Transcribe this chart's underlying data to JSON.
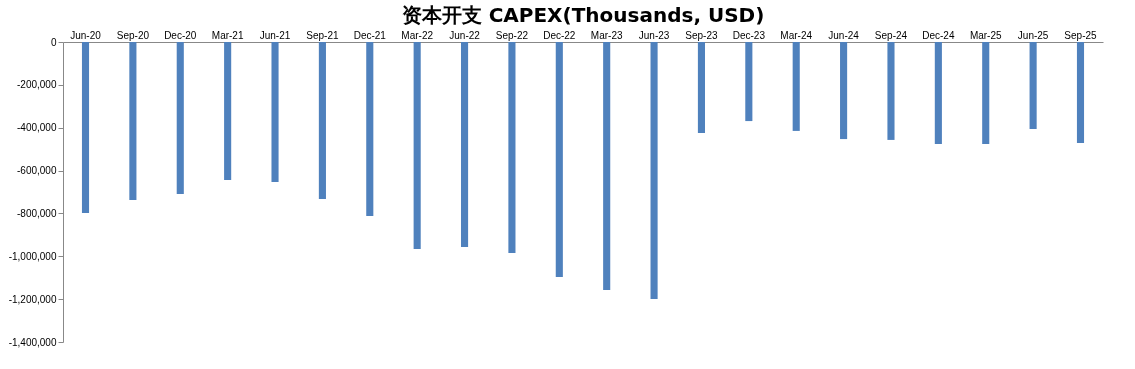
{
  "chart_data": {
    "type": "bar",
    "title": "资本开支 CAPEX(Thousands, USD)",
    "categories": [
      "Jun-20",
      "Sep-20",
      "Dec-20",
      "Mar-21",
      "Jun-21",
      "Sep-21",
      "Dec-21",
      "Mar-22",
      "Jun-22",
      "Sep-22",
      "Dec-22",
      "Mar-23",
      "Jun-23",
      "Sep-23",
      "Dec-23",
      "Mar-24",
      "Jun-24",
      "Sep-24",
      "Dec-24",
      "Mar-25",
      "Jun-25",
      "Sep-25"
    ],
    "values": [
      -798000,
      -737000,
      -709000,
      -644000,
      -653000,
      -733000,
      -812000,
      -966000,
      -957000,
      -985000,
      -1097000,
      -1157000,
      -1199000,
      -425000,
      -369000,
      -415000,
      -453000,
      -457000,
      -476000,
      -476000,
      -406000,
      -471000
    ],
    "color": "#4f81bd",
    "ylim": [
      -1400000,
      0
    ],
    "yticks": [
      {
        "value": -1400000,
        "label": "-1,400,000"
      },
      {
        "value": -1200000,
        "label": "-1,200,000"
      },
      {
        "value": -1000000,
        "label": "-1,000,000"
      },
      {
        "value": -800000,
        "label": "-800,000"
      },
      {
        "value": -600000,
        "label": "-600,000"
      },
      {
        "value": -400000,
        "label": "-400,000"
      },
      {
        "value": -200000,
        "label": "-200,000"
      },
      0
    ],
    "grid": false
  }
}
